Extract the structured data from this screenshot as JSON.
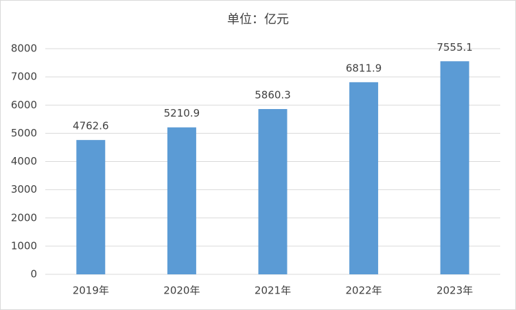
{
  "chart_data": {
    "type": "bar",
    "title": "单位：亿元",
    "categories": [
      "2019年",
      "2020年",
      "2021年",
      "2022年",
      "2023年"
    ],
    "values": [
      4762.6,
      5210.9,
      5860.3,
      6811.9,
      7555.1
    ],
    "color": "#5b9bd5",
    "ylim": [
      0,
      8000
    ],
    "yticks": [
      0,
      1000,
      2000,
      3000,
      4000,
      5000,
      6000,
      7000,
      8000
    ],
    "grid": true
  }
}
